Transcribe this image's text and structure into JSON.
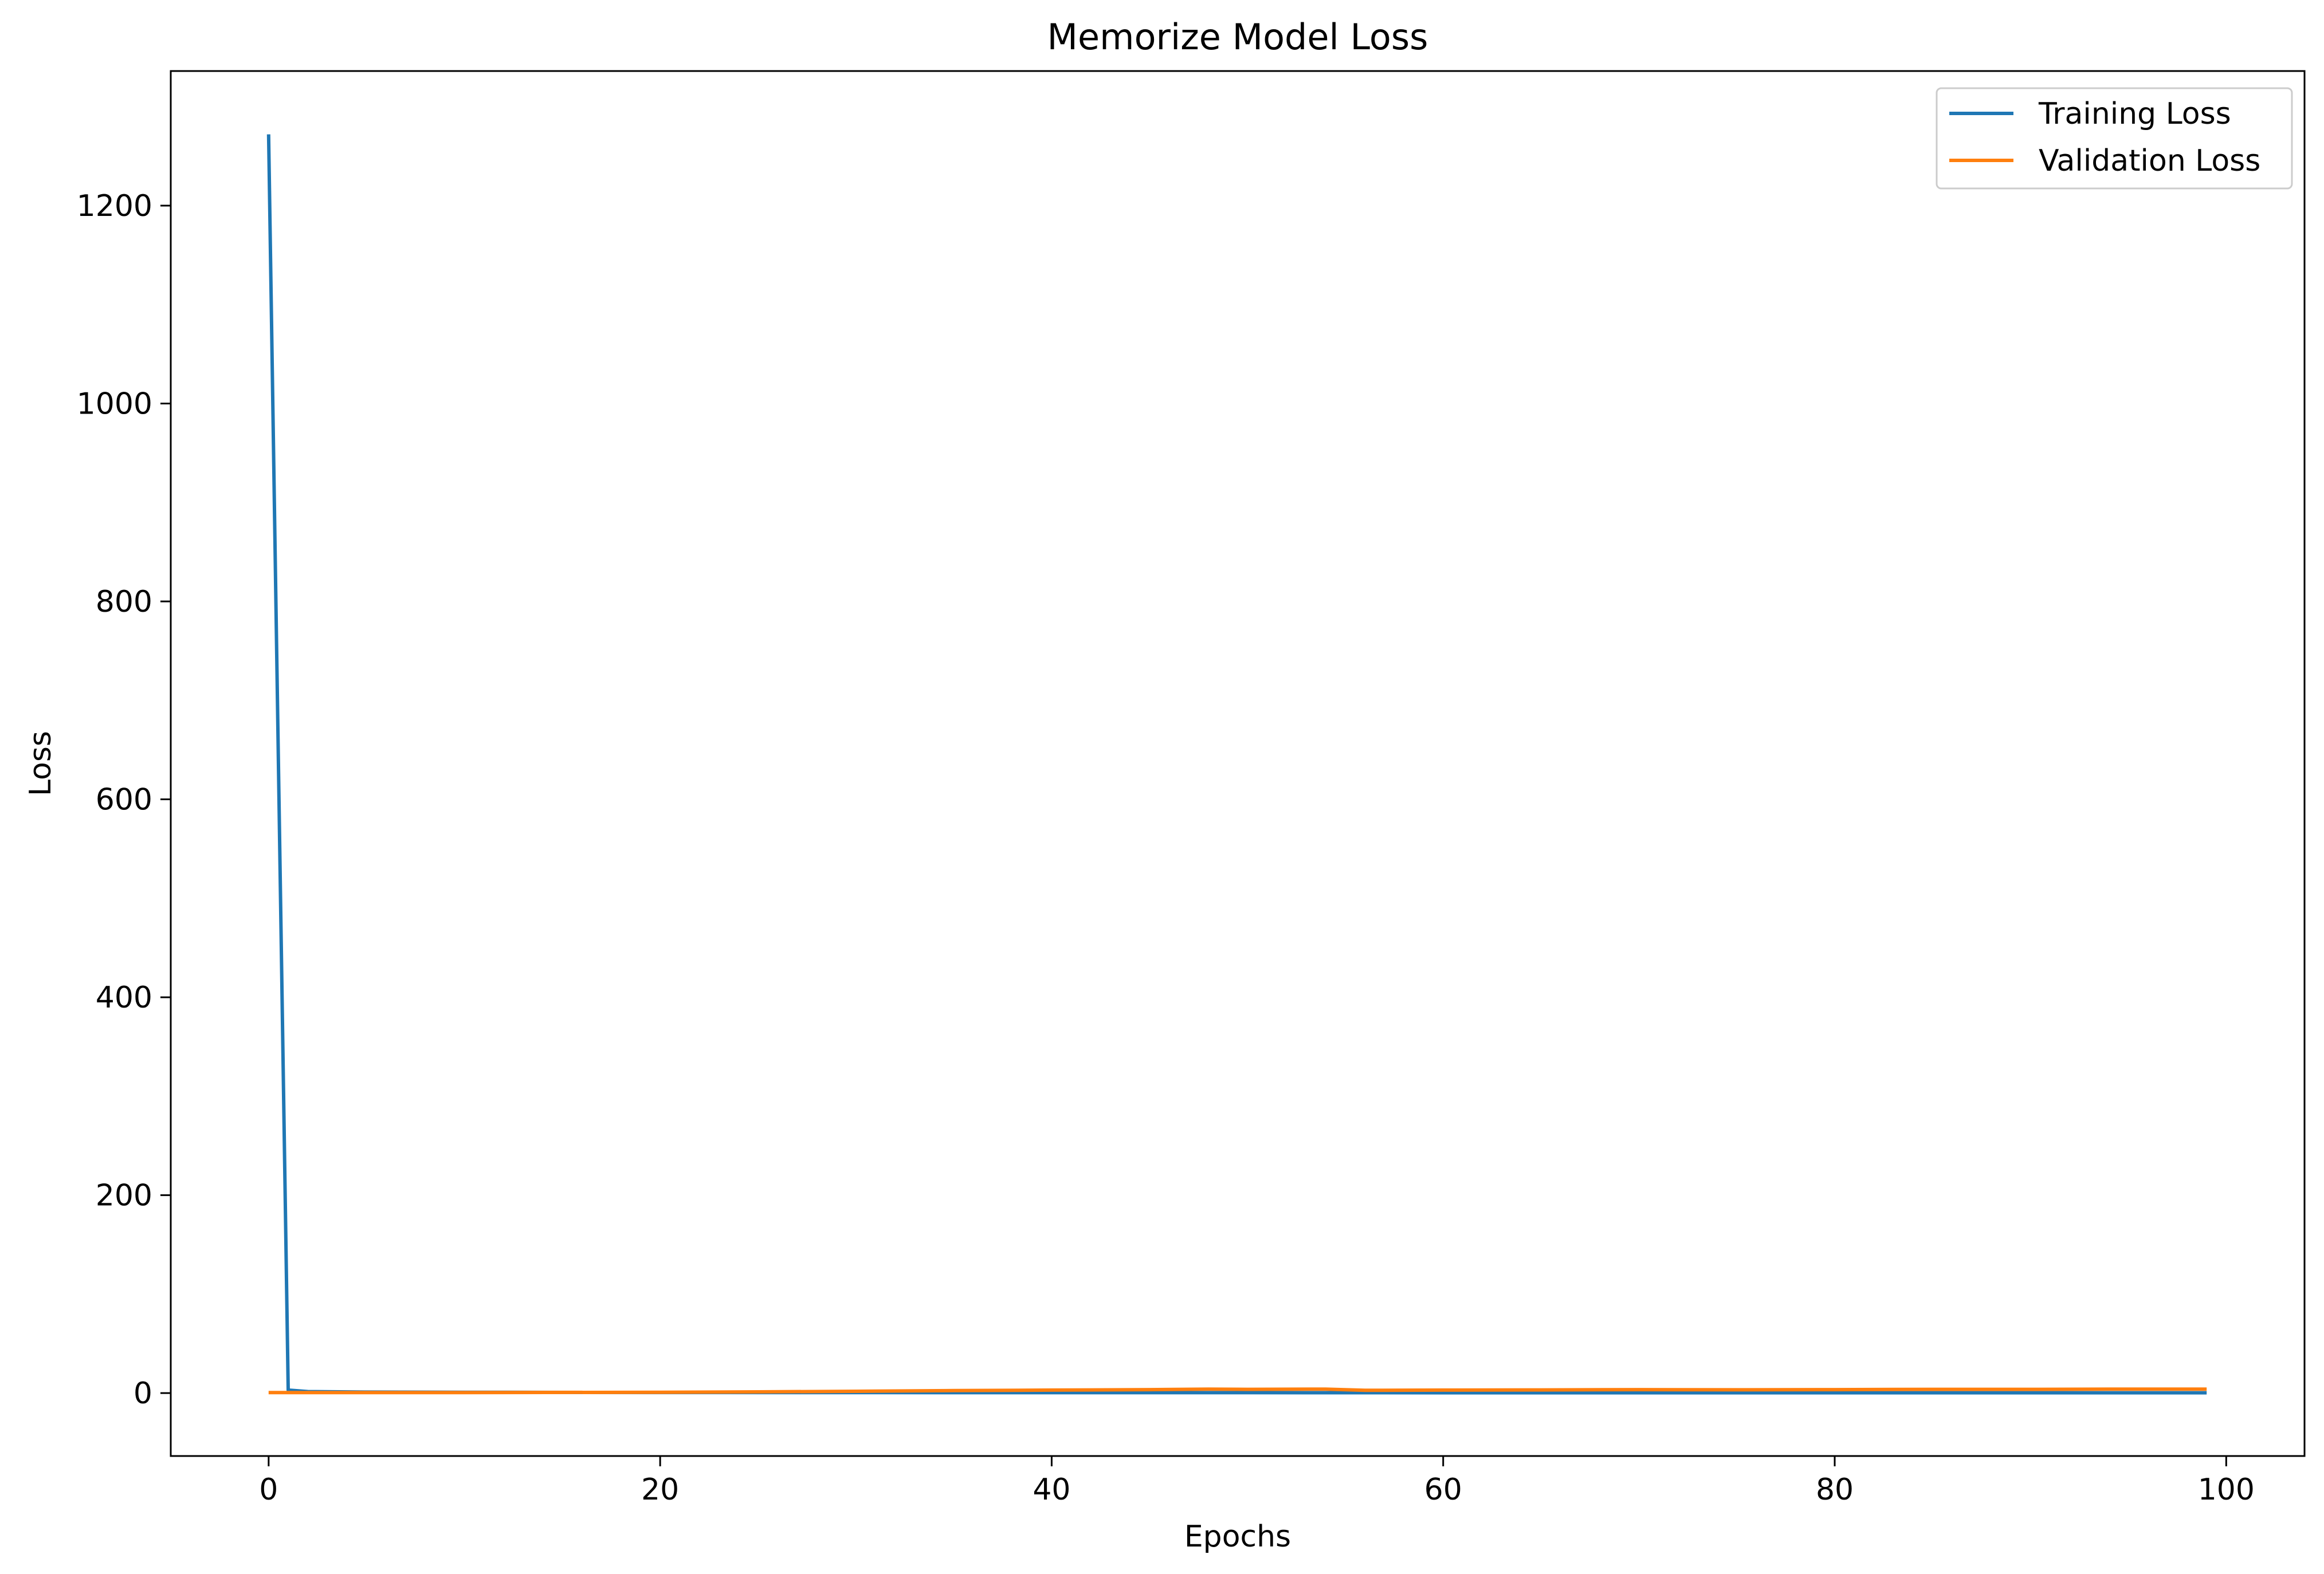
{
  "chart_data": {
    "type": "line",
    "title": "Memorize Model Loss",
    "xlabel": "Epochs",
    "ylabel": "Loss",
    "xlim": [
      -5,
      104
    ],
    "ylim": [
      -63.6,
      1336
    ],
    "xticks": [
      0,
      20,
      40,
      60,
      80,
      100
    ],
    "yticks": [
      0,
      200,
      400,
      600,
      800,
      1000,
      1200
    ],
    "grid": false,
    "legend_position": "top-right",
    "series": [
      {
        "name": "Training Loss",
        "color": "#1f77b4",
        "x": [
          0,
          1,
          2,
          5,
          10,
          20,
          30,
          40,
          50,
          60,
          70,
          80,
          90,
          99
        ],
        "y": [
          1272,
          3.0,
          1.5,
          1.0,
          0.8,
          0.6,
          0.5,
          0.4,
          0.4,
          0.3,
          0.3,
          0.3,
          0.3,
          0.3
        ]
      },
      {
        "name": "Validation Loss",
        "color": "#ff7f0e",
        "x": [
          0,
          10,
          20,
          25,
          30,
          35,
          40,
          45,
          48,
          50,
          54,
          56,
          60,
          65,
          70,
          75,
          80,
          85,
          90,
          95,
          99
        ],
        "y": [
          0.5,
          0.5,
          0.8,
          1.2,
          1.8,
          2.5,
          3.0,
          3.5,
          4.0,
          3.8,
          4.0,
          2.8,
          3.0,
          3.2,
          3.5,
          3.3,
          3.5,
          3.8,
          3.8,
          4.0,
          4.0
        ]
      }
    ]
  }
}
